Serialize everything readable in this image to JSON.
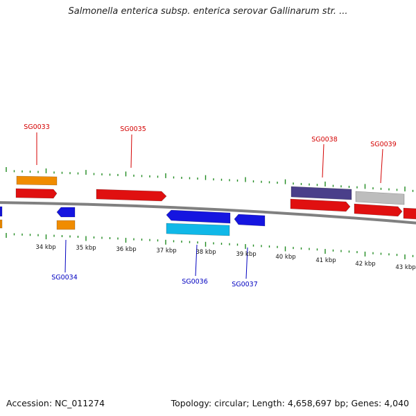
{
  "title": "Salmonella enterica subsp. enterica serovar Gallinarum str. ...",
  "accession_text": "Accession: NC_011274",
  "topology_text": "Topology: circular; Length: 4,658,697 bp; Genes: 4,040",
  "colors": {
    "backbone": "#808080",
    "ticks": "#1f8a1f",
    "top_label": "#d40000",
    "bottom_label": "#0000c0",
    "red": "#e01010",
    "orange": "#f08c00",
    "blue": "#1515e0",
    "cyan": "#10b8e8",
    "purple": "#4a3f8a",
    "gray": "#bdbdbd"
  },
  "kbp_labels": [
    "34 kbp",
    "35 kbp",
    "36 kbp",
    "37 kbp",
    "38 kbp",
    "39 kbp",
    "40 kbp",
    "41 kbp",
    "42 kbp",
    "43 kbp"
  ],
  "gene_labels_top": [
    "SG0033",
    "SG0035",
    "SG0038",
    "SG0039"
  ],
  "gene_labels_bottom": [
    "SG0034",
    "SG0036",
    "SG0037"
  ]
}
